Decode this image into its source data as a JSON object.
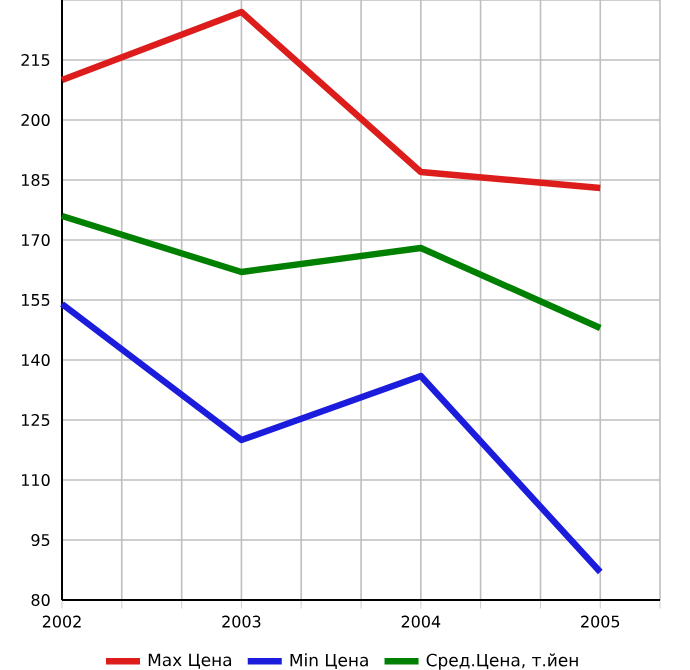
{
  "chart_data": {
    "type": "line",
    "x": [
      2002,
      2003,
      2004,
      2005
    ],
    "series": [
      {
        "name": "Max Цена",
        "color": "#dd1c1c",
        "values": [
          210,
          227,
          187,
          183
        ]
      },
      {
        "name": "Min Цена",
        "color": "#1c1cdd",
        "values": [
          154,
          120,
          136,
          87
        ]
      },
      {
        "name": "Сред.Цена, т.йен",
        "color": "#008000",
        "values": [
          176,
          162,
          168,
          148
        ]
      }
    ],
    "xlim": [
      2002,
      2005.333
    ],
    "xticks": [
      2002,
      {
        "value": 2002.333,
        "label": null
      },
      {
        "value": 2002.667,
        "label": null
      },
      2003,
      {
        "value": 2003.333,
        "label": null
      },
      {
        "value": 2003.667,
        "label": null
      },
      2004,
      {
        "value": 2004.333,
        "label": null
      },
      {
        "value": 2004.667,
        "label": null
      },
      2005,
      {
        "value": 2005.333,
        "label": null
      }
    ],
    "ylim": [
      80,
      230
    ],
    "yticks": [
      80,
      95,
      110,
      125,
      140,
      155,
      170,
      185,
      200,
      215,
      {
        "value": 230,
        "label": null
      }
    ],
    "grid": true,
    "legend": "bottom",
    "marker": "none",
    "line_style": "solid"
  }
}
